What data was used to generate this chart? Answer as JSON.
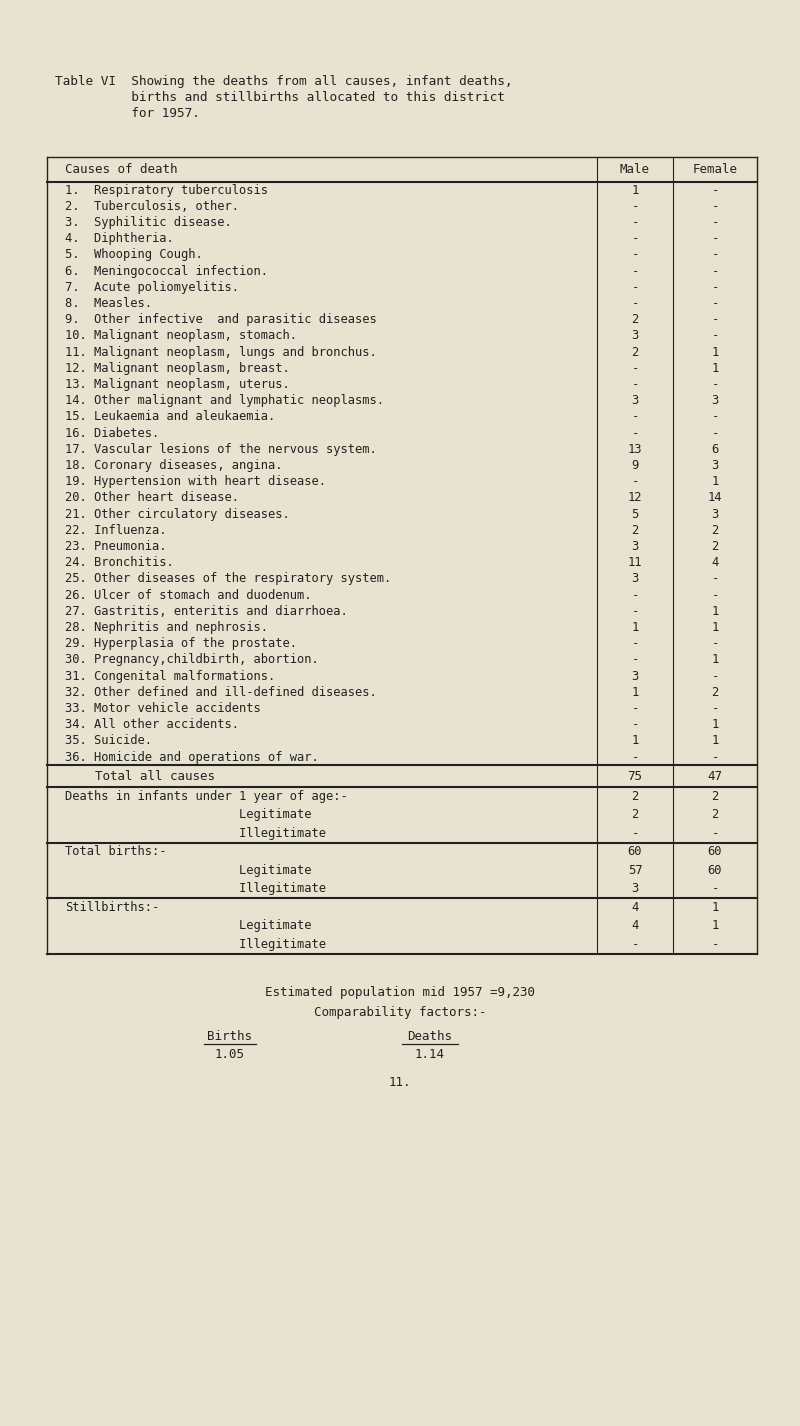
{
  "title_line1": "Table VI  Showing the deaths from all causes, infant deaths,",
  "title_line2": "          births and stillbirths allocated to this district",
  "title_line3": "          for 1957.",
  "bg_color": "#e8e3d0",
  "text_color": "#222222",
  "rows": [
    [
      "1.  Respiratory tuberculosis",
      "1",
      "-"
    ],
    [
      "2.  Tuberculosis, other.",
      "-",
      "-"
    ],
    [
      "3.  Syphilitic disease.",
      "-",
      "-"
    ],
    [
      "4.  Diphtheria.",
      "-",
      "-"
    ],
    [
      "5.  Whooping Cough.",
      "-",
      "-"
    ],
    [
      "6.  Meningococcal infection.",
      "-",
      "-"
    ],
    [
      "7.  Acute poliomyelitis.",
      "-",
      "-"
    ],
    [
      "8.  Measles.",
      "-",
      "-"
    ],
    [
      "9.  Other infective  and parasitic diseases",
      "2",
      "-"
    ],
    [
      "10. Malignant neoplasm, stomach.",
      "3",
      "-"
    ],
    [
      "11. Malignant neoplasm, lungs and bronchus.",
      "2",
      "1"
    ],
    [
      "12. Malignant neoplasm, breast.",
      "-",
      "1"
    ],
    [
      "13. Malignant neoplasm, uterus.",
      "-",
      "-"
    ],
    [
      "14. Other malignant and lymphatic neoplasms.",
      "3",
      "3"
    ],
    [
      "15. Leukaemia and aleukaemia.",
      "-",
      "-"
    ],
    [
      "16. Diabetes.",
      "-",
      "-"
    ],
    [
      "17. Vascular lesions of the nervous system.",
      "13",
      "6"
    ],
    [
      "18. Coronary diseases, angina.",
      "9",
      "3"
    ],
    [
      "19. Hypertension with heart disease.",
      "-",
      "1"
    ],
    [
      "20. Other heart disease.",
      "12",
      "14"
    ],
    [
      "21. Other circulatory diseases.",
      "5",
      "3"
    ],
    [
      "22. Influenza.",
      "2",
      "2"
    ],
    [
      "23. Pneumonia.",
      "3",
      "2"
    ],
    [
      "24. Bronchitis.",
      "11",
      "4"
    ],
    [
      "25. Other diseases of the respiratory system.",
      "3",
      "-"
    ],
    [
      "26. Ulcer of stomach and duodenum.",
      "-",
      "-"
    ],
    [
      "27. Gastritis, enteritis and diarrhoea.",
      "-",
      "1"
    ],
    [
      "28. Nephritis and nephrosis.",
      "1",
      "1"
    ],
    [
      "29. Hyperplasia of the prostate.",
      "-",
      "-"
    ],
    [
      "30. Pregnancy,childbirth, abortion.",
      "-",
      "1"
    ],
    [
      "31. Congenital malformations.",
      "3",
      "-"
    ],
    [
      "32. Other defined and ill-defined diseases.",
      "1",
      "2"
    ],
    [
      "33. Motor vehicle accidents",
      "-",
      "-"
    ],
    [
      "34. All other accidents.",
      "-",
      "1"
    ],
    [
      "35. Suicide.",
      "1",
      "1"
    ],
    [
      "36. Homicide and operations of war.",
      "-",
      "-"
    ]
  ],
  "total_row": [
    "    Total all causes",
    "75",
    "47"
  ],
  "section_infant_label": "Deaths in infants under 1 year of age:-",
  "section_infant_totals": [
    "2",
    "2"
  ],
  "section_infant_rows": [
    [
      "                        Legitimate",
      "2",
      "2"
    ],
    [
      "                        Illegitimate",
      "-",
      "-"
    ]
  ],
  "section_births_label": "Total births:-",
  "section_births_totals": [
    "60",
    "60"
  ],
  "section_births_rows": [
    [
      "                        Legitimate",
      "57",
      "60"
    ],
    [
      "                        Illegitimate",
      "3",
      "-"
    ]
  ],
  "section_stillbirths_label": "Stillbirths:-",
  "section_stillbirths_totals": [
    "4",
    "1"
  ],
  "section_stillbirths_rows": [
    [
      "                        Legitimate",
      "4",
      "1"
    ],
    [
      "                        Illegitimate",
      "-",
      "-"
    ]
  ],
  "footer_line1": "Estimated population mid 1957 =9,230",
  "footer_line2": "Comparability factors:-",
  "footer_births_label": "Births",
  "footer_deaths_label": "Deaths",
  "footer_births_val": "1.05",
  "footer_deaths_val": "1.14",
  "footer_page": "11."
}
